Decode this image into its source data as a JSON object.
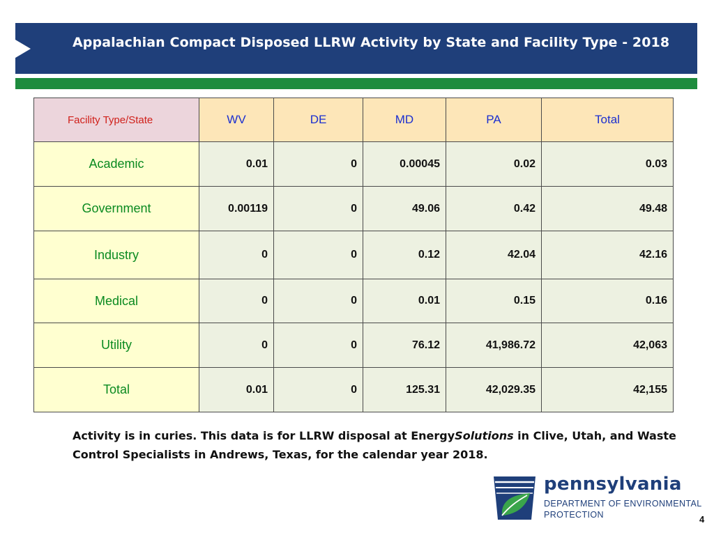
{
  "header": {
    "title": "Appalachian Compact Disposed LLRW Activity by State and Facility Type - 2018"
  },
  "table": {
    "corner_label": "Facility Type/State",
    "columns": [
      "WV",
      "DE",
      "MD",
      "PA",
      "Total"
    ],
    "rows": [
      {
        "label": "Academic",
        "cells": [
          "0.01",
          "0",
          "0.00045",
          "0.02",
          "0.03"
        ]
      },
      {
        "label": "Government",
        "cells": [
          "0.00119",
          "0",
          "49.06",
          "0.42",
          "49.48"
        ]
      },
      {
        "label": "Industry",
        "cells": [
          "0",
          "0",
          "0.12",
          "42.04",
          "42.16"
        ]
      },
      {
        "label": "Medical",
        "cells": [
          "0",
          "0",
          "0.01",
          "0.15",
          "0.16"
        ]
      },
      {
        "label": "Utility",
        "cells": [
          "0",
          "0",
          "76.12",
          "41,986.72",
          "42,063"
        ]
      },
      {
        "label": "Total",
        "cells": [
          "0.01",
          "0",
          "125.31",
          "42,029.35",
          "42,155"
        ]
      }
    ]
  },
  "note": {
    "part1": "Activity is in curies.  This data is for LLRW disposal at Energy",
    "italic": "Solutions",
    "part2": " in Clive, Utah, and Waste Control Specialists in Andrews, Texas, for the calendar year 2018."
  },
  "logo": {
    "word": "pennsylvania",
    "line1": "DEPARTMENT OF ENVIRONMENTAL",
    "line2": "PROTECTION"
  },
  "page_number": "4",
  "colors": {
    "title_bar": "#1f3f7a",
    "green_rule": "#1e8c3e",
    "header_fill": "#fde6b8",
    "corner_fill": "#ecd5dc",
    "rowhead_fill": "#ffffd0",
    "cell_fill": "#edf1e1"
  }
}
